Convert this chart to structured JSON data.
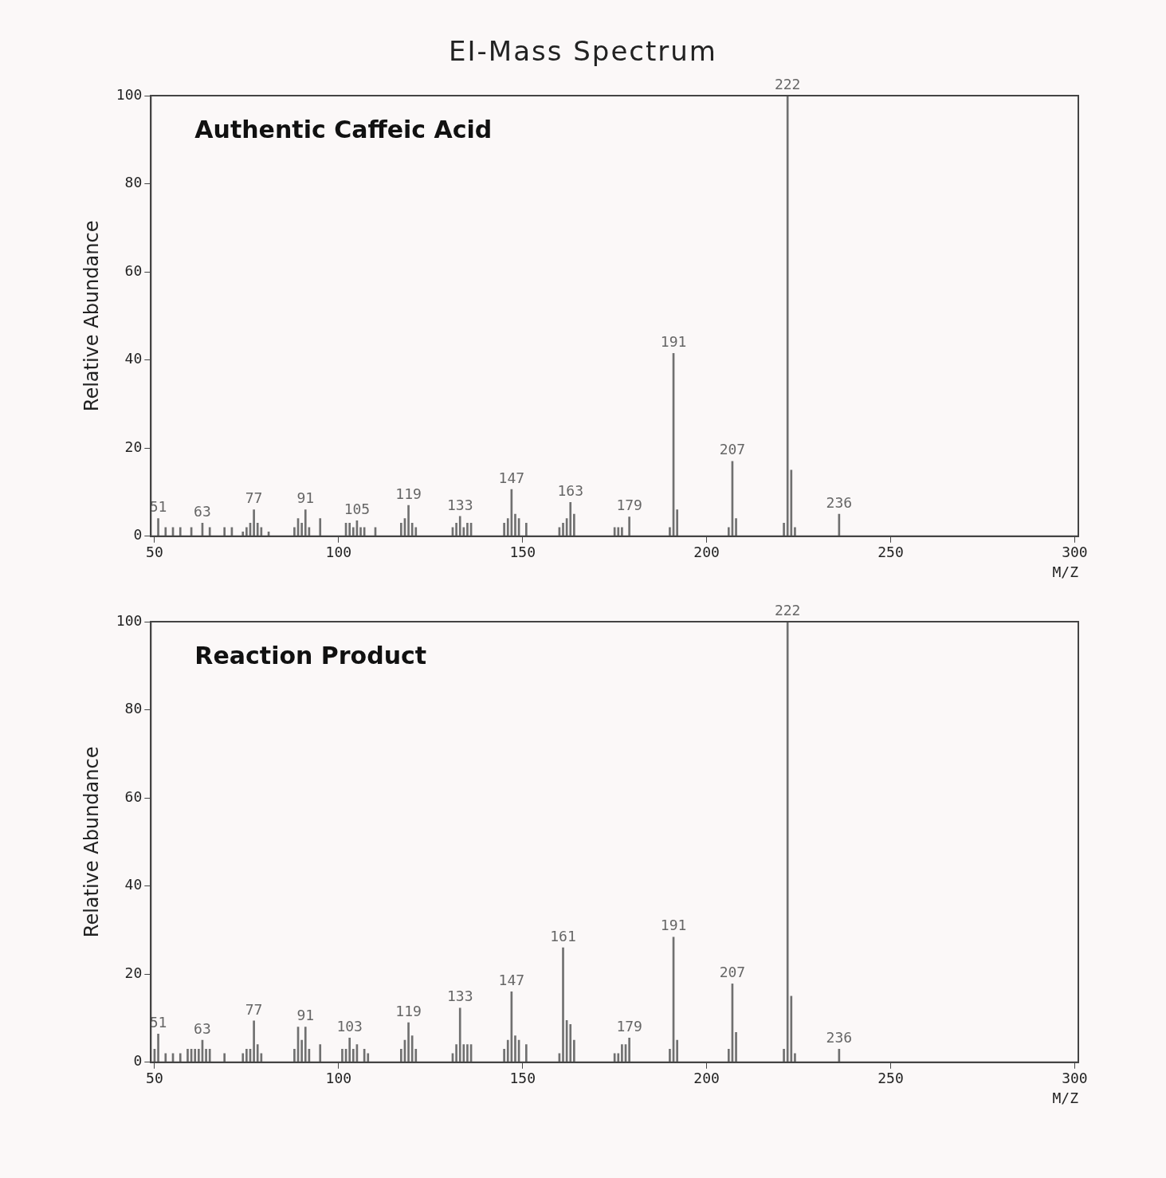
{
  "chart_data": [
    {
      "type": "bar",
      "title": "EI-Mass Spectrum",
      "xlabel": "M/Z",
      "ylabel": "Relative Abundance",
      "color": "#707070",
      "xlim": [
        49,
        301
      ],
      "ylim": [
        0,
        100
      ],
      "xticks": [
        50,
        100,
        150,
        200,
        250,
        300
      ],
      "yticks": [
        0,
        20,
        40,
        60,
        80,
        100
      ],
      "grid": false,
      "x": [
        51,
        53,
        55,
        57,
        60,
        63,
        65,
        69,
        71,
        74,
        75,
        76,
        77,
        78,
        79,
        81,
        88,
        89,
        90,
        91,
        92,
        95,
        102,
        103,
        104,
        105,
        106,
        107,
        110,
        117,
        118,
        119,
        120,
        121,
        131,
        132,
        133,
        134,
        135,
        136,
        145,
        146,
        147,
        148,
        149,
        151,
        160,
        161,
        162,
        163,
        164,
        175,
        176,
        177,
        179,
        190,
        191,
        192,
        206,
        207,
        208,
        221,
        222,
        223,
        224,
        236
      ],
      "values": [
        4,
        2,
        2,
        2,
        2,
        3,
        2,
        2,
        2,
        1,
        2,
        3,
        6,
        3,
        2,
        1,
        2,
        4,
        3,
        6,
        2,
        4,
        3,
        3,
        2,
        3.5,
        2,
        2,
        2,
        3,
        4,
        7,
        3,
        2,
        2,
        3,
        4.5,
        2,
        3,
        3,
        3,
        4,
        10.6,
        5,
        4,
        3,
        2,
        3,
        4,
        7.7,
        5,
        2,
        2,
        2,
        4.4,
        2,
        41.5,
        6,
        2,
        17,
        4,
        3,
        100,
        15,
        2,
        5
      ],
      "annotations": [
        "Authentic Caffeic Acid",
        {
          "text": "51",
          "x": 51,
          "y": 4
        },
        {
          "text": "63",
          "x": 63,
          "y": 3
        },
        {
          "text": "77",
          "x": 77,
          "y": 6
        },
        {
          "text": "91",
          "x": 91,
          "y": 6
        },
        {
          "text": "105",
          "x": 105,
          "y": 3.5
        },
        {
          "text": "119",
          "x": 119,
          "y": 7
        },
        {
          "text": "133",
          "x": 133,
          "y": 4.5
        },
        {
          "text": "147",
          "x": 147,
          "y": 10.6
        },
        {
          "text": "163",
          "x": 163,
          "y": 7.7
        },
        {
          "text": "179",
          "x": 179,
          "y": 4.4
        },
        {
          "text": "191",
          "x": 191,
          "y": 41.5
        },
        {
          "text": "207",
          "x": 207,
          "y": 17
        },
        {
          "text": "222",
          "x": 222,
          "y": 100
        },
        {
          "text": "236",
          "x": 236,
          "y": 5
        }
      ]
    },
    {
      "type": "bar",
      "xlabel": "M/Z",
      "ylabel": "Relative Abundance",
      "color": "#707070",
      "xlim": [
        49,
        301
      ],
      "ylim": [
        0,
        100
      ],
      "xticks": [
        50,
        100,
        150,
        200,
        250,
        300
      ],
      "yticks": [
        0,
        20,
        40,
        60,
        80,
        100
      ],
      "grid": false,
      "x": [
        50,
        51,
        53,
        55,
        57,
        59,
        60,
        61,
        62,
        63,
        64,
        65,
        69,
        74,
        75,
        76,
        77,
        78,
        79,
        88,
        89,
        90,
        91,
        92,
        95,
        101,
        102,
        103,
        104,
        105,
        107,
        108,
        117,
        118,
        119,
        120,
        121,
        131,
        132,
        133,
        134,
        135,
        136,
        145,
        146,
        147,
        148,
        149,
        151,
        160,
        161,
        162,
        163,
        164,
        175,
        176,
        177,
        178,
        179,
        190,
        191,
        192,
        206,
        207,
        208,
        221,
        222,
        223,
        224,
        236
      ],
      "values": [
        3,
        6.4,
        2,
        2,
        2,
        3,
        3,
        3,
        3,
        5,
        3,
        3,
        2,
        2,
        3,
        3,
        9.4,
        4,
        2,
        3,
        8,
        5,
        8,
        3,
        4,
        3,
        3,
        5.5,
        3,
        4,
        3,
        2,
        3,
        5,
        9,
        6,
        3,
        2,
        4,
        12.3,
        4,
        4,
        4,
        3,
        5,
        16,
        6,
        5,
        4,
        2,
        26,
        9.5,
        8.6,
        5,
        2,
        2,
        4,
        4,
        5.5,
        3,
        28.4,
        5,
        3,
        17.8,
        6.8,
        3,
        100,
        15,
        2,
        3
      ],
      "annotations": [
        "Reaction Product",
        {
          "text": "51",
          "x": 51,
          "y": 6.4
        },
        {
          "text": "63",
          "x": 63,
          "y": 5
        },
        {
          "text": "77",
          "x": 77,
          "y": 9.4
        },
        {
          "text": "91",
          "x": 91,
          "y": 8
        },
        {
          "text": "103",
          "x": 103,
          "y": 5.5
        },
        {
          "text": "119",
          "x": 119,
          "y": 9
        },
        {
          "text": "133",
          "x": 133,
          "y": 12.3
        },
        {
          "text": "147",
          "x": 147,
          "y": 16
        },
        {
          "text": "161",
          "x": 161,
          "y": 26
        },
        {
          "text": "179",
          "x": 179,
          "y": 5.5
        },
        {
          "text": "191",
          "x": 191,
          "y": 28.4
        },
        {
          "text": "207",
          "x": 207,
          "y": 17.8
        },
        {
          "text": "222",
          "x": 222,
          "y": 100
        },
        {
          "text": "236",
          "x": 236,
          "y": 3
        }
      ]
    }
  ]
}
